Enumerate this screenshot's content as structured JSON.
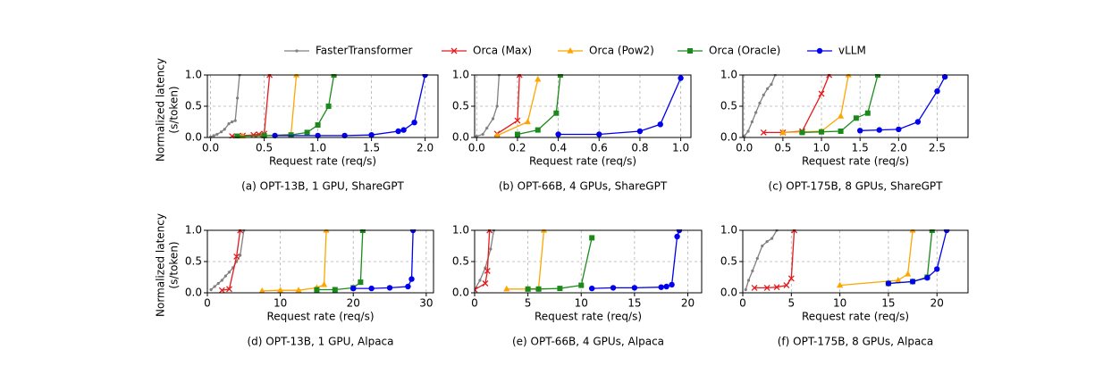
{
  "chart_data": [
    {
      "type": "line",
      "caption": "(a) OPT-13B, 1 GPU, ShareGPT",
      "xlabel": "Request rate (req/s)",
      "ylabel": [
        "Normalized latency",
        "(s/token)"
      ],
      "xlim": [
        -0.03,
        2.12
      ],
      "ylim": [
        0,
        1
      ],
      "grid": true,
      "xticks": [
        {
          "value": 0,
          "label": "0.0"
        },
        {
          "value": 0.5,
          "label": "0.5"
        },
        {
          "value": 1,
          "label": "1.0"
        },
        {
          "value": 1.5,
          "label": "1.5"
        },
        {
          "value": 2,
          "label": "2.0"
        }
      ],
      "yticks": [
        {
          "value": 0,
          "label": "0.0"
        },
        {
          "value": 0.5,
          "label": "0.5"
        },
        {
          "value": 1,
          "label": "1.0"
        }
      ],
      "series": [
        {
          "name": "FasterTransformer",
          "color": "#808080",
          "marker": "dot",
          "x": [
            0,
            0.03,
            0.06,
            0.1,
            0.13,
            0.17,
            0.2,
            0.23,
            0.25,
            0.27
          ],
          "values": [
            0.01,
            0.03,
            0.05,
            0.09,
            0.13,
            0.22,
            0.25,
            0.27,
            0.63,
            1.0
          ]
        },
        {
          "name": "Orca (Max)",
          "color": "#e41a1c",
          "marker": "x",
          "x": [
            0.2,
            0.3,
            0.4,
            0.45,
            0.5,
            0.55
          ],
          "values": [
            0.02,
            0.03,
            0.04,
            0.05,
            0.06,
            1.0
          ]
        },
        {
          "name": "Orca (Pow2)",
          "color": "#ffa500",
          "marker": "triangle",
          "x": [
            0.3,
            0.5,
            0.75,
            0.8
          ],
          "values": [
            0.02,
            0.03,
            0.05,
            1.0
          ]
        },
        {
          "name": "Orca (Oracle)",
          "color": "#1a8a1a",
          "marker": "square",
          "x": [
            0.25,
            0.5,
            0.75,
            0.9,
            1.0,
            1.1,
            1.15
          ],
          "values": [
            0.02,
            0.03,
            0.04,
            0.08,
            0.2,
            0.5,
            1.0
          ]
        },
        {
          "name": "vLLM",
          "color": "#0000ee",
          "marker": "circle",
          "x": [
            0.6,
            1.0,
            1.25,
            1.5,
            1.75,
            1.8,
            1.9,
            2.0
          ],
          "values": [
            0.03,
            0.03,
            0.03,
            0.04,
            0.1,
            0.12,
            0.24,
            1.0
          ]
        }
      ]
    },
    {
      "type": "line",
      "caption": "(b) OPT-66B, 4 GPUs, ShareGPT",
      "xlabel": "Request rate (req/s)",
      "xlim": [
        -0.01,
        1.05
      ],
      "ylim": [
        0,
        1
      ],
      "grid": true,
      "xticks": [
        {
          "value": 0,
          "label": "0.0"
        },
        {
          "value": 0.2,
          "label": "0.2"
        },
        {
          "value": 0.4,
          "label": "0.4"
        },
        {
          "value": 0.6,
          "label": "0.6"
        },
        {
          "value": 0.8,
          "label": "0.8"
        },
        {
          "value": 1,
          "label": "1.0"
        }
      ],
      "yticks": [
        {
          "value": 0,
          "label": "0.0"
        },
        {
          "value": 0.5,
          "label": "0.5"
        },
        {
          "value": 1,
          "label": "1.0"
        }
      ],
      "series": [
        {
          "name": "FasterTransformer",
          "color": "#808080",
          "marker": "dot",
          "x": [
            0,
            0.03,
            0.05,
            0.08,
            0.1,
            0.11
          ],
          "values": [
            0.02,
            0.05,
            0.15,
            0.3,
            0.5,
            1.0
          ]
        },
        {
          "name": "Orca (Max)",
          "color": "#e41a1c",
          "marker": "x",
          "x": [
            0.1,
            0.2,
            0.21
          ],
          "values": [
            0.06,
            0.27,
            1.0
          ]
        },
        {
          "name": "Orca (Pow2)",
          "color": "#ffa500",
          "marker": "triangle",
          "x": [
            0.1,
            0.25,
            0.3
          ],
          "values": [
            0.03,
            0.25,
            0.93
          ]
        },
        {
          "name": "Orca (Oracle)",
          "color": "#1a8a1a",
          "marker": "square",
          "x": [
            0.2,
            0.3,
            0.39,
            0.41
          ],
          "values": [
            0.05,
            0.12,
            0.39,
            1.0
          ]
        },
        {
          "name": "vLLM",
          "color": "#0000ee",
          "marker": "circle",
          "x": [
            0.4,
            0.6,
            0.8,
            0.9,
            1.0
          ],
          "values": [
            0.05,
            0.05,
            0.1,
            0.21,
            0.95
          ]
        }
      ]
    },
    {
      "type": "line",
      "caption": "(c) OPT-175B, 8 GPUs, ShareGPT",
      "xlabel": "Request rate (req/s)",
      "xlim": [
        -0.02,
        2.9
      ],
      "ylim": [
        0,
        1
      ],
      "grid": true,
      "xticks": [
        {
          "value": 0,
          "label": "0.0"
        },
        {
          "value": 0.5,
          "label": "0.5"
        },
        {
          "value": 1,
          "label": "1.0"
        },
        {
          "value": 1.5,
          "label": "1.5"
        },
        {
          "value": 2,
          "label": "2.0"
        },
        {
          "value": 2.5,
          "label": "2.5"
        }
      ],
      "yticks": [
        {
          "value": 0,
          "label": "0.0"
        },
        {
          "value": 0.5,
          "label": "0.5"
        },
        {
          "value": 1,
          "label": "1.0"
        }
      ],
      "series": [
        {
          "name": "FasterTransformer",
          "color": "#808080",
          "marker": "dot",
          "x": [
            0,
            0.05,
            0.1,
            0.15,
            0.2,
            0.25,
            0.3,
            0.35,
            0.4
          ],
          "values": [
            0.02,
            0.1,
            0.25,
            0.4,
            0.55,
            0.68,
            0.78,
            0.85,
            1.0
          ]
        },
        {
          "name": "Orca (Max)",
          "color": "#e41a1c",
          "marker": "x",
          "x": [
            0.25,
            0.5,
            0.75,
            1.0,
            1.1
          ],
          "values": [
            0.08,
            0.08,
            0.1,
            0.7,
            1.0
          ]
        },
        {
          "name": "Orca (Pow2)",
          "color": "#ffa500",
          "marker": "triangle",
          "x": [
            0.5,
            1.0,
            1.25,
            1.35
          ],
          "values": [
            0.08,
            0.1,
            0.34,
            1.0
          ]
        },
        {
          "name": "Orca (Oracle)",
          "color": "#1a8a1a",
          "marker": "square",
          "x": [
            0.75,
            1.0,
            1.25,
            1.45,
            1.6,
            1.73
          ],
          "values": [
            0.08,
            0.09,
            0.1,
            0.31,
            0.39,
            1.0
          ]
        },
        {
          "name": "vLLM",
          "color": "#0000ee",
          "marker": "circle",
          "x": [
            1.5,
            1.75,
            2.0,
            2.25,
            2.5,
            2.6
          ],
          "values": [
            0.11,
            0.12,
            0.13,
            0.25,
            0.74,
            0.97
          ]
        }
      ]
    },
    {
      "type": "line",
      "caption": "(d) OPT-13B, 1 GPU, Alpaca",
      "xlabel": "Request rate (req/s)",
      "ylabel": [
        "Normalized latency",
        "(s/token)"
      ],
      "xlim": [
        0,
        31
      ],
      "ylim": [
        0,
        1
      ],
      "grid": true,
      "xticks": [
        0,
        10,
        20,
        30
      ],
      "yticks": [
        {
          "value": 0,
          "label": "0.0"
        },
        {
          "value": 0.5,
          "label": "0.5"
        },
        {
          "value": 1,
          "label": "1.0"
        }
      ],
      "series": [
        {
          "name": "FasterTransformer",
          "color": "#808080",
          "marker": "dot",
          "x": [
            0.5,
            1,
            1.5,
            2,
            2.5,
            3,
            3.5,
            4,
            4.5,
            5
          ],
          "values": [
            0.05,
            0.1,
            0.15,
            0.2,
            0.27,
            0.33,
            0.4,
            0.5,
            0.6,
            1.0
          ]
        },
        {
          "name": "Orca (Max)",
          "color": "#e41a1c",
          "marker": "x",
          "x": [
            2,
            3,
            4,
            4.5
          ],
          "values": [
            0.04,
            0.06,
            0.58,
            1.0
          ]
        },
        {
          "name": "Orca (Pow2)",
          "color": "#ffa500",
          "marker": "triangle",
          "x": [
            7.5,
            10,
            12.5,
            15,
            16,
            16.3
          ],
          "values": [
            0.03,
            0.04,
            0.04,
            0.08,
            0.13,
            1.0
          ]
        },
        {
          "name": "Orca (Oracle)",
          "color": "#1a8a1a",
          "marker": "square",
          "x": [
            15,
            17.5,
            20,
            21,
            21.3
          ],
          "values": [
            0.05,
            0.05,
            0.08,
            0.17,
            1.0
          ]
        },
        {
          "name": "vLLM",
          "color": "#0000ee",
          "marker": "circle",
          "x": [
            20,
            22.5,
            25,
            27.5,
            28,
            28.2
          ],
          "values": [
            0.07,
            0.07,
            0.08,
            0.1,
            0.22,
            1.0
          ]
        }
      ]
    },
    {
      "type": "line",
      "caption": "(e) OPT-66B, 4 GPUs, Alpaca",
      "xlabel": "Request rate (req/s)",
      "xlim": [
        0,
        21.3
      ],
      "ylim": [
        0,
        1
      ],
      "grid": true,
      "xticks": [
        0,
        5,
        10,
        15,
        20
      ],
      "yticks": [
        {
          "value": 0,
          "label": "0.0"
        },
        {
          "value": 0.5,
          "label": "0.5"
        },
        {
          "value": 1,
          "label": "1.0"
        }
      ],
      "series": [
        {
          "name": "FasterTransformer",
          "color": "#808080",
          "marker": "dot",
          "x": [
            0,
            0.5,
            1,
            1.5,
            1.8
          ],
          "values": [
            0.05,
            0.2,
            0.4,
            0.7,
            1.0
          ]
        },
        {
          "name": "Orca (Max)",
          "color": "#e41a1c",
          "marker": "x",
          "x": [
            0,
            1,
            1.2,
            1.4
          ],
          "values": [
            0.05,
            0.15,
            0.35,
            1.0
          ]
        },
        {
          "name": "Orca (Pow2)",
          "color": "#ffa500",
          "marker": "triangle",
          "x": [
            3,
            5,
            6,
            6.5
          ],
          "values": [
            0.06,
            0.06,
            0.07,
            1.0
          ]
        },
        {
          "name": "Orca (Oracle)",
          "color": "#1a8a1a",
          "marker": "square",
          "x": [
            5,
            6,
            8,
            10,
            11
          ],
          "values": [
            0.06,
            0.06,
            0.07,
            0.12,
            0.88
          ]
        },
        {
          "name": "vLLM",
          "color": "#0000ee",
          "marker": "circle",
          "x": [
            11,
            13,
            15,
            17.5,
            18,
            18.5,
            19,
            19.2
          ],
          "values": [
            0.07,
            0.08,
            0.08,
            0.09,
            0.1,
            0.13,
            0.9,
            1.0
          ]
        }
      ]
    },
    {
      "type": "line",
      "caption": "(f) OPT-175B, 8 GPUs, Alpaca",
      "xlabel": "Request rate (req/s)",
      "xlim": [
        0,
        23.2
      ],
      "ylim": [
        0,
        1
      ],
      "grid": true,
      "xticks": [
        0,
        5,
        10,
        15,
        20
      ],
      "yticks": [
        {
          "value": 0,
          "label": "0.0"
        },
        {
          "value": 0.5,
          "label": "0.5"
        },
        {
          "value": 1,
          "label": "1.0"
        }
      ],
      "series": [
        {
          "name": "FasterTransformer",
          "color": "#808080",
          "marker": "dot",
          "x": [
            0.3,
            0.6,
            1,
            1.5,
            2,
            2.5,
            3,
            3.5
          ],
          "values": [
            0.05,
            0.2,
            0.35,
            0.55,
            0.75,
            0.82,
            0.87,
            1.0
          ]
        },
        {
          "name": "Orca (Max)",
          "color": "#e41a1c",
          "marker": "x",
          "x": [
            1.2,
            2.5,
            3.5,
            4.5,
            5,
            5.3
          ],
          "values": [
            0.08,
            0.08,
            0.09,
            0.12,
            0.23,
            1.0
          ]
        },
        {
          "name": "Orca (Pow2)",
          "color": "#ffa500",
          "marker": "triangle",
          "x": [
            10,
            16,
            17,
            17.5
          ],
          "values": [
            0.12,
            0.2,
            0.3,
            1.0
          ]
        },
        {
          "name": "Orca (Oracle)",
          "color": "#1a8a1a",
          "marker": "square",
          "x": [
            15,
            17.5,
            19,
            19.5
          ],
          "values": [
            0.15,
            0.18,
            0.25,
            1.0
          ]
        },
        {
          "name": "vLLM",
          "color": "#0000ee",
          "marker": "circle",
          "x": [
            15,
            17.5,
            19,
            20,
            21
          ],
          "values": [
            0.15,
            0.18,
            0.24,
            0.38,
            1.0
          ]
        }
      ]
    }
  ]
}
